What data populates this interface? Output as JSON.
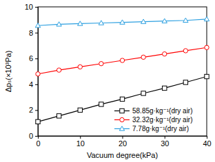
{
  "chart_data": {
    "type": "line",
    "x_label": "Vacuum degree(kPa)",
    "y_label": "Δpₛ(×10³Pa)",
    "x": [
      0,
      5,
      10,
      15,
      20,
      25,
      30,
      35,
      40
    ],
    "series": [
      {
        "name": "58.85g·kg⁻¹(dry air)",
        "color": "#000000",
        "marker": "square",
        "line_style": "solid",
        "values": [
          1.1,
          1.55,
          2.0,
          2.45,
          2.85,
          3.3,
          3.7,
          4.15,
          4.6
        ]
      },
      {
        "name": "32.32g·kg⁻¹(dry air)",
        "color": "#ff0000",
        "marker": "circle",
        "line_style": "solid",
        "values": [
          4.8,
          5.1,
          5.35,
          5.6,
          5.85,
          6.1,
          6.35,
          6.6,
          6.85
        ]
      },
      {
        "name": "7.78g·kg⁻¹(dry air)",
        "color": "#2b9fe0",
        "marker": "triangle",
        "line_style": "solid",
        "values": [
          8.55,
          8.65,
          8.7,
          8.75,
          8.8,
          8.85,
          8.9,
          8.95,
          9.05
        ]
      }
    ],
    "xlim": [
      0,
      40
    ],
    "xticks": [
      0,
      10,
      20,
      30,
      40
    ],
    "ylim": [
      0,
      10
    ],
    "yticks": [
      0,
      2,
      4,
      6,
      8,
      10
    ],
    "grid": false,
    "legend": "lower right"
  }
}
